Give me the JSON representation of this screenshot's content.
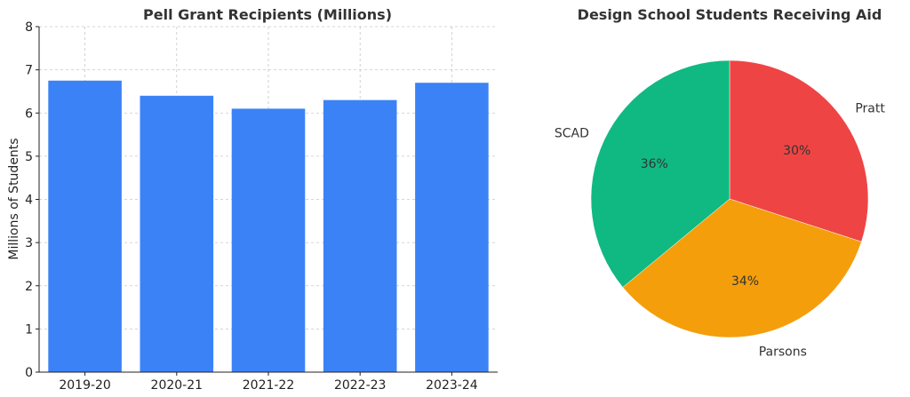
{
  "chart_data": [
    {
      "type": "bar",
      "title": "Pell Grant Recipients (Millions)",
      "xlabel": "",
      "ylabel": "Millions of Students",
      "categories": [
        "2019-20",
        "2020-21",
        "2021-22",
        "2022-23",
        "2023-24"
      ],
      "values": [
        6.75,
        6.4,
        6.1,
        6.3,
        6.7
      ],
      "ylim": [
        0,
        8
      ],
      "yticks": [
        0,
        1,
        2,
        3,
        4,
        5,
        6,
        7,
        8
      ],
      "grid": true,
      "color": "#3b82f6"
    },
    {
      "type": "pie",
      "title": "Design School Students Receiving Aid",
      "labels": [
        "Pratt",
        "Parsons",
        "SCAD"
      ],
      "values": [
        30,
        34,
        36
      ],
      "percent_labels": [
        "30%",
        "34%",
        "36%"
      ],
      "colors": [
        "#ef4444",
        "#f59e0b",
        "#10b981"
      ]
    }
  ]
}
